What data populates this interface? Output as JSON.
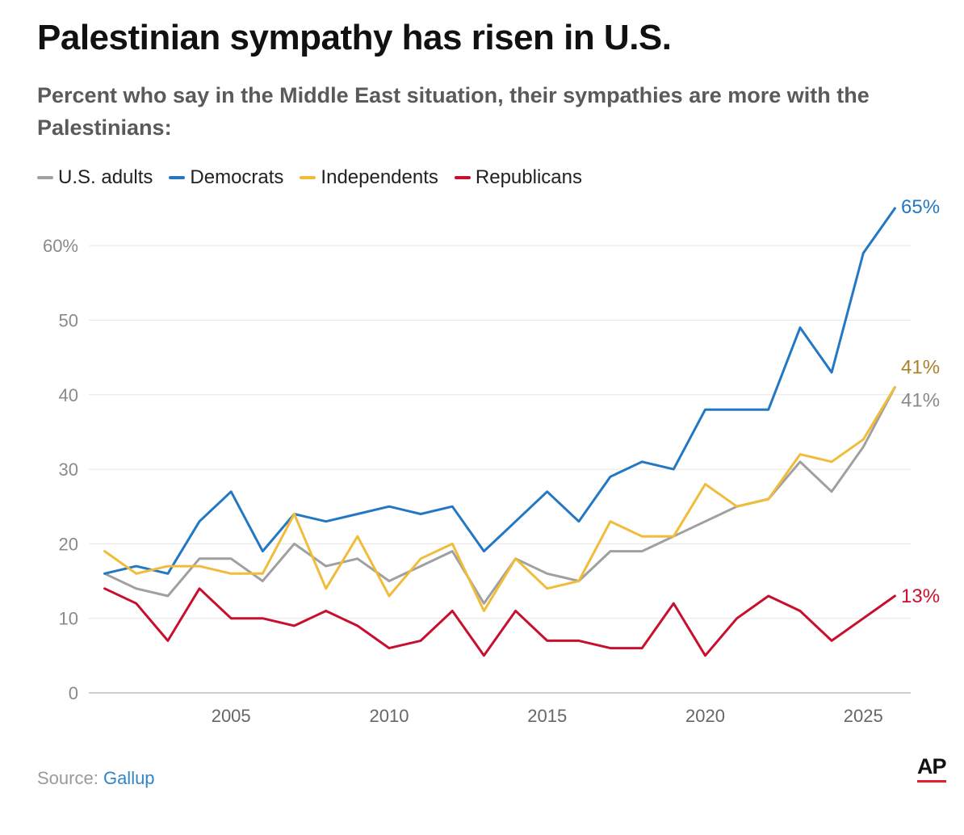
{
  "header": {
    "title": "Palestinian sympathy has risen in U.S.",
    "subtitle": "Percent who say in the Middle East situation, their sympathies are more with the Palestinians:"
  },
  "footer": {
    "source_label": "Source:",
    "source_name": "Gallup",
    "logo_text": "AP"
  },
  "chart_data": {
    "type": "line",
    "title": "Palestinian sympathy has risen in U.S.",
    "subtitle": "Percent who say in the Middle East situation, their sympathies are more with the Palestinians:",
    "xlabel": "",
    "ylabel": "",
    "x": [
      2001,
      2002,
      2003,
      2004,
      2005,
      2006,
      2007,
      2008,
      2009,
      2010,
      2011,
      2012,
      2013,
      2014,
      2015,
      2016,
      2017,
      2018,
      2019,
      2020,
      2021,
      2022,
      2023,
      2024,
      2025,
      2026
    ],
    "xlim": [
      2000.5,
      2026.5
    ],
    "ylim": [
      0,
      65
    ],
    "x_ticks": [
      2005,
      2010,
      2015,
      2020,
      2025
    ],
    "y_ticks": [
      0,
      10,
      20,
      30,
      40,
      50,
      60
    ],
    "y_tick_labels": [
      "0",
      "10",
      "20",
      "30",
      "40",
      "50",
      "60%"
    ],
    "grid": "horizontal",
    "legend_position": "top-left",
    "series": [
      {
        "name": "U.S. adults",
        "color": "#a0a0a0",
        "label_color": "#8a8a8a",
        "end_label": "41%",
        "values": [
          16,
          14,
          13,
          18,
          18,
          15,
          20,
          17,
          18,
          15,
          17,
          19,
          12,
          18,
          16,
          15,
          19,
          19,
          21,
          23,
          25,
          26,
          31,
          27,
          33,
          41
        ]
      },
      {
        "name": "Democrats",
        "color": "#2378c3",
        "label_color": "#2378c3",
        "end_label": "65%",
        "values": [
          16,
          17,
          16,
          23,
          27,
          19,
          24,
          23,
          24,
          25,
          24,
          25,
          19,
          23,
          27,
          23,
          29,
          31,
          30,
          38,
          38,
          38,
          49,
          43,
          59,
          65
        ]
      },
      {
        "name": "Independents",
        "color": "#f0bc3a",
        "label_color": "#a8832a",
        "end_label": "41%",
        "values": [
          19,
          16,
          17,
          17,
          16,
          16,
          24,
          14,
          21,
          13,
          18,
          20,
          11,
          18,
          14,
          15,
          23,
          21,
          21,
          28,
          25,
          26,
          32,
          31,
          34,
          41
        ]
      },
      {
        "name": "Republicans",
        "color": "#c8102e",
        "label_color": "#c8102e",
        "end_label": "13%",
        "values": [
          14,
          12,
          7,
          14,
          10,
          10,
          9,
          11,
          9,
          6,
          7,
          11,
          5,
          11,
          7,
          7,
          6,
          6,
          12,
          5,
          10,
          13,
          11,
          7,
          10,
          13
        ]
      }
    ]
  }
}
